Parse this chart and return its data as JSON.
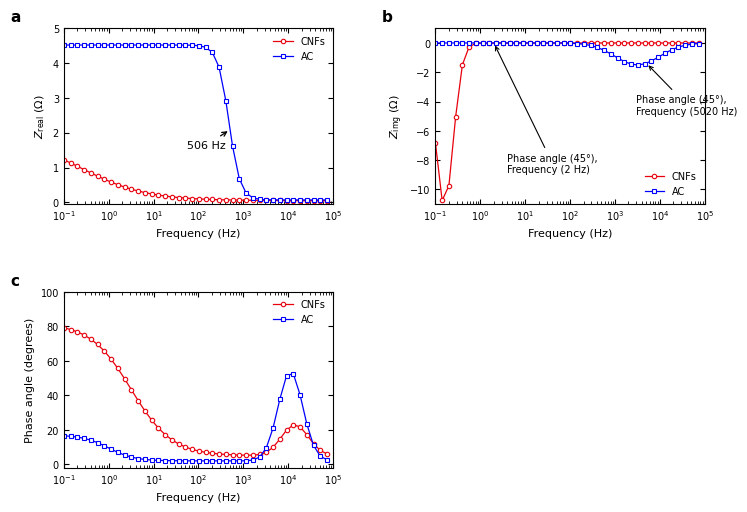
{
  "title_a": "a",
  "title_b": "b",
  "title_c": "c",
  "xlabel": "Frequency (Hz)",
  "ylabel_a": "$Z_{\\mathrm{real}}$ (Ω)",
  "ylabel_b": "$Z_{\\mathrm{img}}$ (Ω)",
  "ylabel_c": "Phase angle (degrees)",
  "cnf_color": "#e8000d",
  "ac_color": "#0000ff",
  "annotation_a": "506 Hz",
  "annotation_b1": "Phase angle (45°),\nFrequency (2 Hz)",
  "annotation_b2": "Phase angle (45°),\nFrequency (5020 Hz)",
  "legend_cnf": "CNFs",
  "legend_ac": "AC"
}
